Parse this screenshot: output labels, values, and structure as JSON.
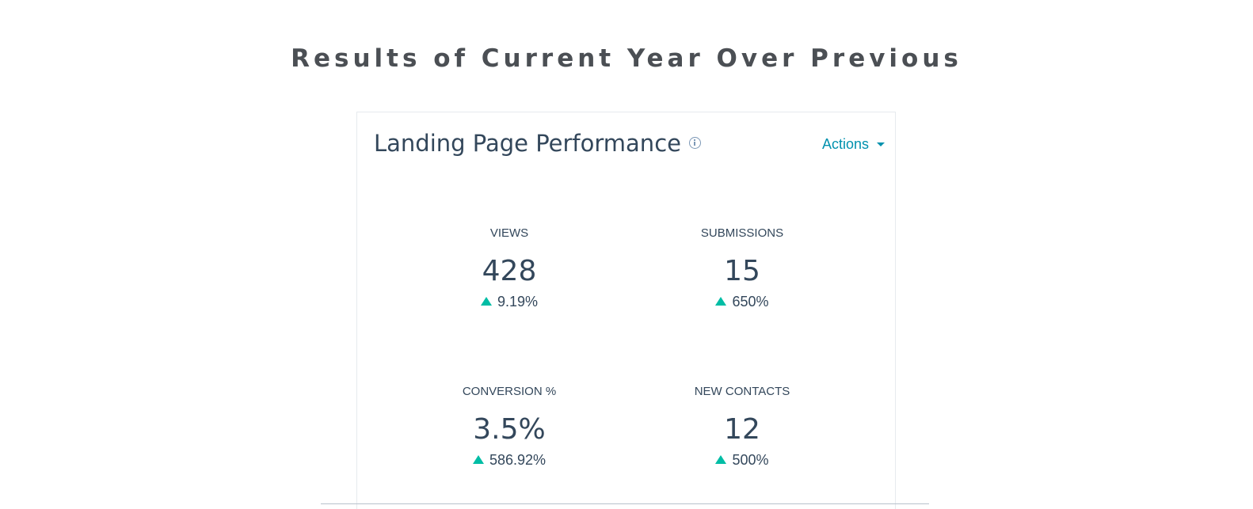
{
  "page": {
    "heading": "Results of Current Year Over Previous"
  },
  "card": {
    "title": "Landing Page Performance",
    "info_icon": "info-icon",
    "actions_label": "Actions",
    "accent_color": "#0091ae",
    "positive_color": "#00bda5",
    "metrics": [
      {
        "label": "VIEWS",
        "value": "428",
        "change": "9.19%",
        "trend": "up"
      },
      {
        "label": "SUBMISSIONS",
        "value": "15",
        "change": "650%",
        "trend": "up"
      },
      {
        "label": "CONVERSION %",
        "value": "3.5%",
        "change": "586.92%",
        "trend": "up"
      },
      {
        "label": "NEW CONTACTS",
        "value": "12",
        "change": "500%",
        "trend": "up"
      }
    ]
  }
}
